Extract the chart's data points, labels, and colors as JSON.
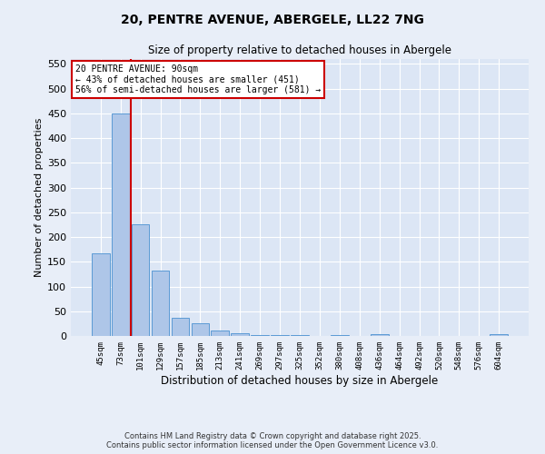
{
  "title_line1": "20, PENTRE AVENUE, ABERGELE, LL22 7NG",
  "title_line2": "Size of property relative to detached houses in Abergele",
  "xlabel": "Distribution of detached houses by size in Abergele",
  "ylabel": "Number of detached properties",
  "categories": [
    "45sqm",
    "73sqm",
    "101sqm",
    "129sqm",
    "157sqm",
    "185sqm",
    "213sqm",
    "241sqm",
    "269sqm",
    "297sqm",
    "325sqm",
    "352sqm",
    "380sqm",
    "408sqm",
    "436sqm",
    "464sqm",
    "492sqm",
    "520sqm",
    "548sqm",
    "576sqm",
    "604sqm"
  ],
  "values": [
    167,
    450,
    225,
    132,
    37,
    25,
    11,
    6,
    2,
    2,
    1,
    0,
    1,
    0,
    4,
    0,
    0,
    0,
    0,
    0,
    4
  ],
  "bar_color": "#aec6e8",
  "bar_edge_color": "#5b9bd5",
  "background_color": "#dce6f5",
  "fig_background_color": "#e8eef8",
  "grid_color": "#ffffff",
  "vline_color": "#cc0000",
  "annotation_title": "20 PENTRE AVENUE: 90sqm",
  "annotation_line1": "← 43% of detached houses are smaller (451)",
  "annotation_line2": "56% of semi-detached houses are larger (581) →",
  "annotation_box_color": "#cc0000",
  "ylim": [
    0,
    560
  ],
  "yticks": [
    0,
    50,
    100,
    150,
    200,
    250,
    300,
    350,
    400,
    450,
    500,
    550
  ],
  "footer_line1": "Contains HM Land Registry data © Crown copyright and database right 2025.",
  "footer_line2": "Contains public sector information licensed under the Open Government Licence v3.0."
}
